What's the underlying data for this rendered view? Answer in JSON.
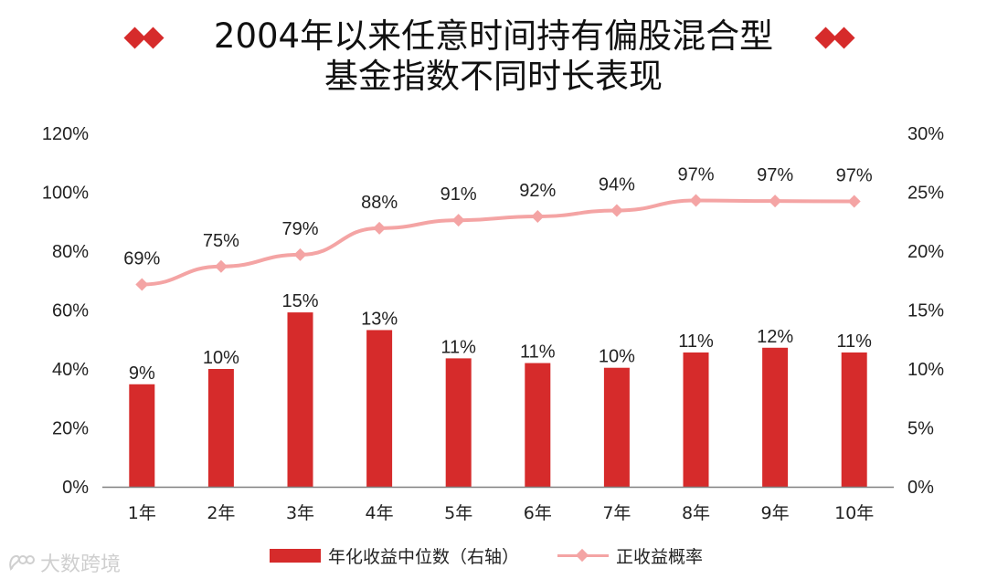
{
  "title": {
    "line1": "2004年以来任意时间持有偏股混合型",
    "line2": "基金指数不同时长表现"
  },
  "colors": {
    "bar": "#d62b2b",
    "line": "#f4a4a4",
    "axis": "#808080",
    "text": "#222222"
  },
  "icons": {
    "title_ornament": "double-diamond-icon",
    "legend_bar": "bar-swatch-icon",
    "legend_line": "line-marker-swatch-icon",
    "watermark": "brand-logo-icon"
  },
  "chart_data": {
    "type": "bar",
    "categories": [
      "1年",
      "2年",
      "3年",
      "4年",
      "5年",
      "6年",
      "7年",
      "8年",
      "9年",
      "10年"
    ],
    "series": [
      {
        "name": "年化收益中位数（右轴）",
        "type": "bar",
        "axis": "right",
        "values": [
          8.7,
          10.0,
          14.8,
          13.3,
          10.9,
          10.5,
          10.1,
          11.4,
          11.8,
          11.4
        ],
        "labels": [
          "9%",
          "10%",
          "15%",
          "13%",
          "11%",
          "11%",
          "10%",
          "11%",
          "12%",
          "11%"
        ]
      },
      {
        "name": "正收益概率",
        "type": "line",
        "axis": "left",
        "values": [
          68.7,
          74.8,
          78.8,
          87.8,
          90.5,
          91.8,
          93.8,
          97.2,
          97.0,
          96.9
        ],
        "labels": [
          "69%",
          "75%",
          "79%",
          "88%",
          "91%",
          "92%",
          "94%",
          "97%",
          "97%",
          "97%"
        ]
      }
    ],
    "left_axis": {
      "ylim": [
        0,
        120
      ],
      "ticks": [
        "0%",
        "20%",
        "40%",
        "60%",
        "80%",
        "100%",
        "120%"
      ]
    },
    "right_axis": {
      "ylim": [
        0,
        30
      ],
      "ticks": [
        "0%",
        "5%",
        "10%",
        "15%",
        "20%",
        "25%",
        "30%"
      ]
    },
    "grid": false,
    "legend_position": "bottom"
  },
  "legend": {
    "bar_label": "年化收益中位数（右轴）",
    "line_label": "正收益概率"
  },
  "watermark": {
    "text": "大数跨境"
  }
}
